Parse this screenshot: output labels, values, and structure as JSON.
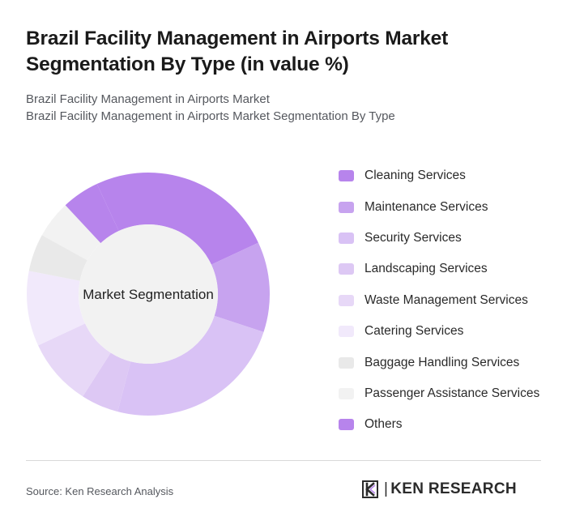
{
  "title": "Brazil Facility Management in Airports Market Segmentation By Type (in value %)",
  "subtitle_lines": [
    "Brazil Facility Management in Airports Market",
    "Brazil Facility Management in Airports Market Segmentation By Type"
  ],
  "chart_data": {
    "type": "pie",
    "style": "donut",
    "center_label": "Market Segmentation",
    "legend_position": "right",
    "categories": [
      "Cleaning Services",
      "Maintenance Services",
      "Security Services",
      "Landscaping Services",
      "Waste Management Services",
      "Catering Services",
      "Baggage Handling Services",
      "Passenger Assistance Services",
      "Others"
    ],
    "values": [
      25,
      12,
      24,
      5,
      9,
      10,
      5,
      5,
      5
    ],
    "colors": [
      "#b784ec",
      "#c7a3ef",
      "#d9c2f5",
      "#ddc8f4",
      "#e7d8f7",
      "#f1e9fb",
      "#e9e9e9",
      "#f2f2f2",
      "#b784ec"
    ],
    "start_angle_deg": -25,
    "center_fill": "#f2f2f2"
  },
  "footer": {
    "source": "Source: Ken Research Analysis",
    "logo_name": "KEN RESEARCH",
    "logo_icon": "ken-research-logo-icon"
  }
}
